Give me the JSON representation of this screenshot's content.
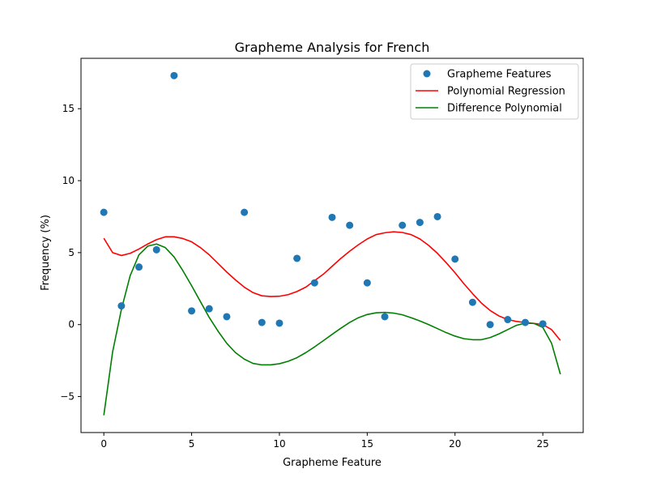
{
  "chart_data": {
    "type": "scatter",
    "title": "Grapheme Analysis for French",
    "xlabel": "Grapheme Feature",
    "ylabel": "Frequency (%)",
    "xlim": [
      -1.3,
      27.3
    ],
    "ylim": [
      -7.5,
      18.5
    ],
    "xticks": [
      0,
      5,
      10,
      15,
      20,
      25
    ],
    "xtick_labels": [
      "0",
      "5",
      "10",
      "15",
      "20",
      "25"
    ],
    "yticks": [
      -5,
      0,
      5,
      10,
      15
    ],
    "ytick_labels": [
      "−5",
      "0",
      "5",
      "10",
      "15"
    ],
    "grid": false,
    "legend_position": "top-right",
    "series": [
      {
        "name": "Grapheme Features",
        "kind": "scatter",
        "color": "#1f77b4",
        "x": [
          0,
          1,
          2,
          3,
          4,
          5,
          6,
          7,
          8,
          9,
          10,
          11,
          12,
          13,
          14,
          15,
          16,
          17,
          18,
          19,
          20,
          21,
          22,
          23,
          24,
          25
        ],
        "y": [
          7.8,
          1.3,
          4.0,
          5.2,
          17.3,
          0.95,
          1.1,
          0.55,
          7.8,
          0.15,
          0.1,
          4.6,
          2.9,
          7.45,
          6.9,
          2.9,
          0.55,
          6.9,
          7.1,
          7.5,
          4.55,
          1.55,
          0.0,
          0.35,
          0.15,
          0.05
        ]
      },
      {
        "name": "Polynomial Regression",
        "kind": "line",
        "color": "#ff0000",
        "x": [
          0,
          0.5,
          1,
          1.5,
          2,
          2.5,
          3,
          3.5,
          4,
          4.5,
          5,
          5.5,
          6,
          6.5,
          7,
          7.5,
          8,
          8.5,
          9,
          9.5,
          10,
          10.5,
          11,
          11.5,
          12,
          12.5,
          13,
          13.5,
          14,
          14.5,
          15,
          15.5,
          16,
          16.5,
          17,
          17.5,
          18,
          18.5,
          19,
          19.5,
          20,
          20.5,
          21,
          21.5,
          22,
          22.5,
          23,
          23.5,
          24,
          24.5,
          25,
          25.5,
          26
        ],
        "y": [
          6.0,
          5.0,
          4.8,
          4.95,
          5.25,
          5.6,
          5.9,
          6.1,
          6.1,
          5.98,
          5.75,
          5.35,
          4.85,
          4.25,
          3.65,
          3.1,
          2.6,
          2.22,
          2.0,
          1.95,
          1.97,
          2.08,
          2.3,
          2.6,
          3.05,
          3.5,
          4.05,
          4.6,
          5.1,
          5.55,
          5.95,
          6.25,
          6.38,
          6.45,
          6.4,
          6.25,
          5.95,
          5.5,
          4.95,
          4.3,
          3.6,
          2.85,
          2.15,
          1.5,
          0.98,
          0.6,
          0.35,
          0.22,
          0.14,
          0.08,
          0.0,
          -0.35,
          -1.1
        ]
      },
      {
        "name": "Difference Polynomial",
        "kind": "line",
        "color": "#008000",
        "x": [
          0,
          0.5,
          1,
          1.5,
          2,
          2.5,
          3,
          3.5,
          4,
          4.5,
          5,
          5.5,
          6,
          6.5,
          7,
          7.5,
          8,
          8.5,
          9,
          9.5,
          10,
          10.5,
          11,
          11.5,
          12,
          12.5,
          13,
          13.5,
          14,
          14.5,
          15,
          15.5,
          16,
          16.5,
          17,
          17.5,
          18,
          18.5,
          19,
          19.5,
          20,
          20.5,
          21,
          21.5,
          22,
          22.5,
          23,
          23.5,
          24,
          24.5,
          25,
          25.5,
          26
        ],
        "y": [
          -6.3,
          -1.9,
          1.05,
          3.4,
          4.85,
          5.45,
          5.6,
          5.35,
          4.7,
          3.75,
          2.7,
          1.6,
          0.5,
          -0.45,
          -1.3,
          -1.95,
          -2.4,
          -2.7,
          -2.8,
          -2.8,
          -2.72,
          -2.55,
          -2.3,
          -1.95,
          -1.55,
          -1.12,
          -0.68,
          -0.25,
          0.15,
          0.48,
          0.7,
          0.82,
          0.85,
          0.8,
          0.68,
          0.48,
          0.25,
          0.0,
          -0.28,
          -0.56,
          -0.8,
          -0.98,
          -1.05,
          -1.05,
          -0.9,
          -0.65,
          -0.35,
          -0.05,
          0.1,
          0.08,
          -0.2,
          -1.3,
          -3.45
        ]
      }
    ]
  }
}
